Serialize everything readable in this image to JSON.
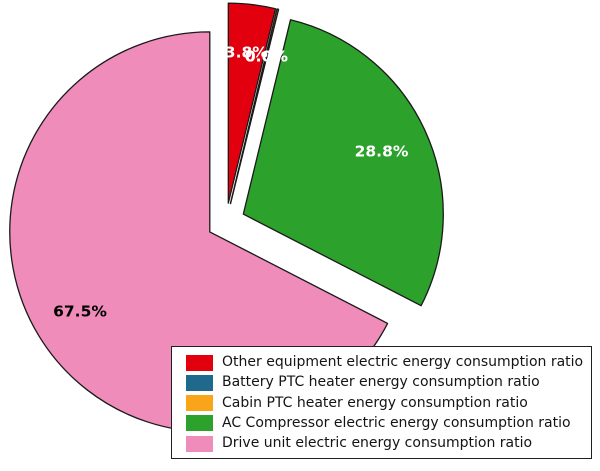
{
  "chart_data": {
    "type": "pie",
    "title": "",
    "start_angle": 90,
    "direction": "clockwise",
    "explode": 0.095,
    "pct_distance": 0.76,
    "edge_color": "#1a1a1a",
    "background_color": "#ffffff",
    "legend_position": "lower right",
    "slices": [
      {
        "label": "Other equipment electric energy consumption ratio",
        "value": 3.8,
        "pct_label": "3.8%",
        "color": "#e2000f",
        "pct_label_color": "#ffffff"
      },
      {
        "label": "Battery PTC heater energy consumption ratio",
        "value": 0.0,
        "pct_label": "0.0%",
        "color": "#1f6a8c",
        "pct_label_color": "#ffffff"
      },
      {
        "label": "Cabin PTC heater energy consumption ratio",
        "value": 0.0,
        "pct_label": "0.0%",
        "color": "#f9a51a",
        "pct_label_color": "#ffffff"
      },
      {
        "label": "AC Compressor electric energy consumption ratio",
        "value": 28.8,
        "pct_label": "28.8%",
        "color": "#2ca12c",
        "pct_label_color": "#ffffff"
      },
      {
        "label": "Drive unit electric energy consumption ratio",
        "value": 67.5,
        "pct_label": "67.5%",
        "color": "#f08cba",
        "pct_label_color": "#000000"
      }
    ]
  }
}
